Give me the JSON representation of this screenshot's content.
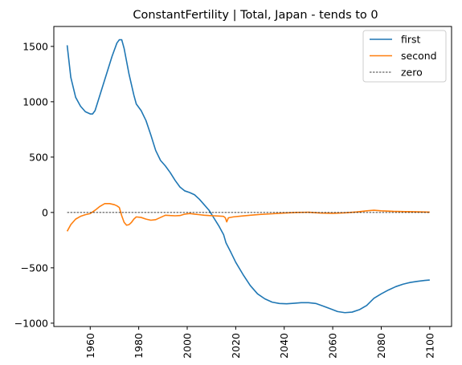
{
  "chart_data": {
    "type": "line",
    "title": "ConstantFertility | Total, Japan  - tends to 0",
    "xlabel": "",
    "ylabel": "",
    "xlim": [
      1945,
      2109
    ],
    "ylim": [
      -1030,
      1680
    ],
    "x_ticks": [
      1960,
      1980,
      2000,
      2020,
      2040,
      2060,
      2080,
      2100
    ],
    "y_ticks": [
      -1000,
      -500,
      0,
      500,
      1000,
      1500
    ],
    "x_tick_rotation": 90,
    "grid": false,
    "legend": {
      "placement": "top-right"
    },
    "series": [
      {
        "name": "first",
        "color": "#1f77b4",
        "style": "solid",
        "points": [
          [
            1950.5,
            1510
          ],
          [
            1952,
            1220
          ],
          [
            1954,
            1040
          ],
          [
            1956,
            960
          ],
          [
            1958,
            910
          ],
          [
            1960,
            890
          ],
          [
            1961,
            890
          ],
          [
            1962,
            920
          ],
          [
            1963,
            990
          ],
          [
            1965,
            1130
          ],
          [
            1967,
            1270
          ],
          [
            1969,
            1410
          ],
          [
            1971,
            1530
          ],
          [
            1972,
            1560
          ],
          [
            1973,
            1560
          ],
          [
            1974,
            1480
          ],
          [
            1976,
            1250
          ],
          [
            1978,
            1060
          ],
          [
            1979,
            980
          ],
          [
            1981,
            920
          ],
          [
            1983,
            830
          ],
          [
            1985,
            700
          ],
          [
            1987,
            560
          ],
          [
            1989,
            470
          ],
          [
            1991,
            420
          ],
          [
            1993,
            360
          ],
          [
            1995,
            290
          ],
          [
            1997,
            230
          ],
          [
            1999,
            195
          ],
          [
            2001,
            180
          ],
          [
            2003,
            160
          ],
          [
            2005,
            120
          ],
          [
            2007,
            70
          ],
          [
            2009,
            20
          ],
          [
            2011,
            -50
          ],
          [
            2013,
            -120
          ],
          [
            2015,
            -200
          ],
          [
            2016,
            -275
          ],
          [
            2018,
            -360
          ],
          [
            2020,
            -450
          ],
          [
            2023,
            -560
          ],
          [
            2026,
            -660
          ],
          [
            2029,
            -735
          ],
          [
            2032,
            -780
          ],
          [
            2035,
            -810
          ],
          [
            2038,
            -822
          ],
          [
            2041,
            -825
          ],
          [
            2044,
            -820
          ],
          [
            2047,
            -815
          ],
          [
            2050,
            -815
          ],
          [
            2053,
            -822
          ],
          [
            2056,
            -845
          ],
          [
            2059,
            -870
          ],
          [
            2062,
            -895
          ],
          [
            2065,
            -905
          ],
          [
            2068,
            -900
          ],
          [
            2071,
            -878
          ],
          [
            2074,
            -840
          ],
          [
            2077,
            -775
          ],
          [
            2080,
            -735
          ],
          [
            2083,
            -700
          ],
          [
            2086,
            -670
          ],
          [
            2089,
            -648
          ],
          [
            2092,
            -632
          ],
          [
            2095,
            -622
          ],
          [
            2098,
            -614
          ],
          [
            2100,
            -610
          ]
        ]
      },
      {
        "name": "second",
        "color": "#ff7f0e",
        "style": "solid",
        "points": [
          [
            1950.5,
            -170
          ],
          [
            1952,
            -110
          ],
          [
            1954,
            -60
          ],
          [
            1956,
            -35
          ],
          [
            1958,
            -20
          ],
          [
            1960,
            -10
          ],
          [
            1962,
            20
          ],
          [
            1964,
            55
          ],
          [
            1966,
            80
          ],
          [
            1968,
            80
          ],
          [
            1970,
            70
          ],
          [
            1971,
            60
          ],
          [
            1972,
            45
          ],
          [
            1973,
            -30
          ],
          [
            1974,
            -90
          ],
          [
            1975,
            -115
          ],
          [
            1976,
            -110
          ],
          [
            1977,
            -90
          ],
          [
            1978,
            -60
          ],
          [
            1979,
            -40
          ],
          [
            1981,
            -45
          ],
          [
            1983,
            -60
          ],
          [
            1985,
            -70
          ],
          [
            1987,
            -65
          ],
          [
            1989,
            -45
          ],
          [
            1991,
            -25
          ],
          [
            1993,
            -28
          ],
          [
            1995,
            -30
          ],
          [
            1997,
            -28
          ],
          [
            1999,
            -15
          ],
          [
            2001,
            -10
          ],
          [
            2003,
            -15
          ],
          [
            2005,
            -20
          ],
          [
            2007,
            -25
          ],
          [
            2009,
            -28
          ],
          [
            2011,
            -30
          ],
          [
            2013,
            -32
          ],
          [
            2015,
            -35
          ],
          [
            2015.7,
            -48
          ],
          [
            2016.3,
            -85
          ],
          [
            2017,
            -48
          ],
          [
            2019,
            -40
          ],
          [
            2022,
            -33
          ],
          [
            2026,
            -25
          ],
          [
            2030,
            -18
          ],
          [
            2035,
            -12
          ],
          [
            2040,
            -5
          ],
          [
            2045,
            0
          ],
          [
            2050,
            2
          ],
          [
            2055,
            -5
          ],
          [
            2060,
            -8
          ],
          [
            2065,
            -3
          ],
          [
            2070,
            5
          ],
          [
            2074,
            15
          ],
          [
            2077,
            20
          ],
          [
            2080,
            15
          ],
          [
            2085,
            10
          ],
          [
            2090,
            8
          ],
          [
            2095,
            6
          ],
          [
            2100,
            3
          ]
        ]
      },
      {
        "name": "zero",
        "color": "#000000",
        "style": "dashed",
        "points": [
          [
            1950.5,
            0
          ],
          [
            2100,
            0
          ]
        ]
      }
    ]
  }
}
